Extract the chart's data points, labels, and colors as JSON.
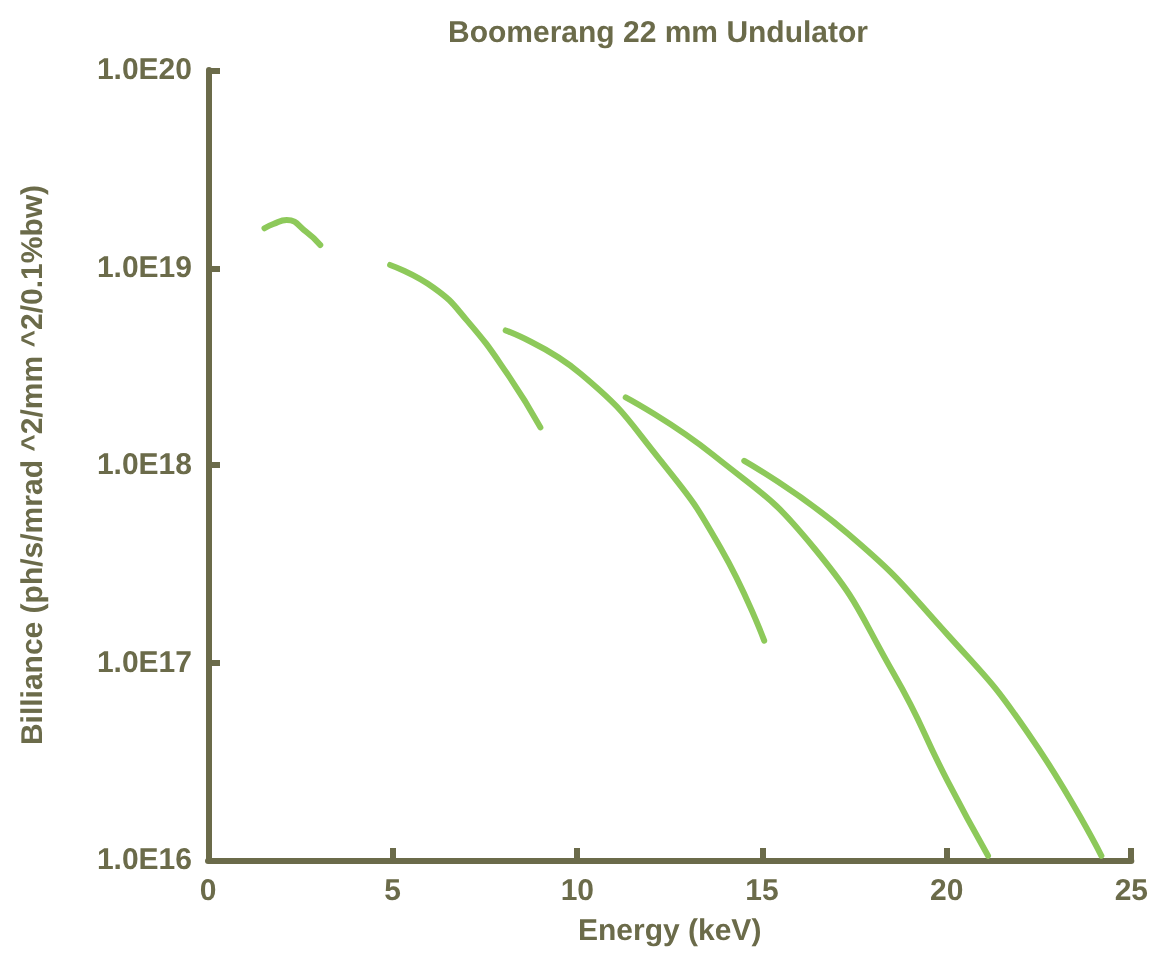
{
  "chart_data": {
    "type": "line",
    "title": "Boomerang 22 mm Undulator",
    "xlabel": "Energy (keV)",
    "ylabel": "Billiance (ph/s/mrad ^2/mm ^2/0.1%bw)",
    "xlim": [
      0,
      25
    ],
    "xticks": [
      0,
      5,
      10,
      15,
      20,
      25
    ],
    "ylim": [
      1e+16,
      1e+20
    ],
    "yticks": [
      {
        "value": 1e+16,
        "label": "1.0E16"
      },
      {
        "value": 1e+17,
        "label": "1.0E17"
      },
      {
        "value": 1e+18,
        "label": "1.0E18"
      },
      {
        "value": 1e+19,
        "label": "1.0E19"
      },
      {
        "value": 1e+20,
        "label": "1.0E20"
      }
    ],
    "log": "y",
    "grid": false,
    "marker": "none",
    "line_style": "solid",
    "series": [
      {
        "color": "#8dc95a",
        "x": [
          1.53,
          1.77,
          2.13,
          2.67,
          3.04
        ],
        "values": [
          1.58e+19,
          1.66e+19,
          1.74e+19,
          1.51e+19,
          1.3e+19
        ]
      },
      {
        "color": "#8dc95a",
        "x": [
          4.93,
          6.11,
          7.01,
          8.1,
          9.0
        ],
        "values": [
          1.03e+19,
          7.9e+18,
          5.4e+18,
          2.9e+18,
          1.55e+18
        ]
      },
      {
        "color": "#8dc95a",
        "x": [
          8.06,
          10.09,
          12.26,
          13.88,
          15.06
        ],
        "values": [
          4.8e+18,
          2.9e+18,
          1.05e+18,
          3.8e+17,
          1.29e+17
        ]
      },
      {
        "color": "#8dc95a",
        "x": [
          11.31,
          13.69,
          16.41,
          18.58,
          20.03,
          21.12
        ],
        "values": [
          2.2e+18,
          1.12e+18,
          3.8e+17,
          8.7e+16,
          2.5e+16,
          1.05e+16
        ]
      },
      {
        "color": "#8dc95a",
        "x": [
          14.52,
          17.32,
          20.03,
          22.2,
          24.19
        ],
        "values": [
          1.05e+18,
          4.5e+17,
          1.38e+17,
          4.4e+16,
          1.05e+16
        ]
      }
    ]
  }
}
